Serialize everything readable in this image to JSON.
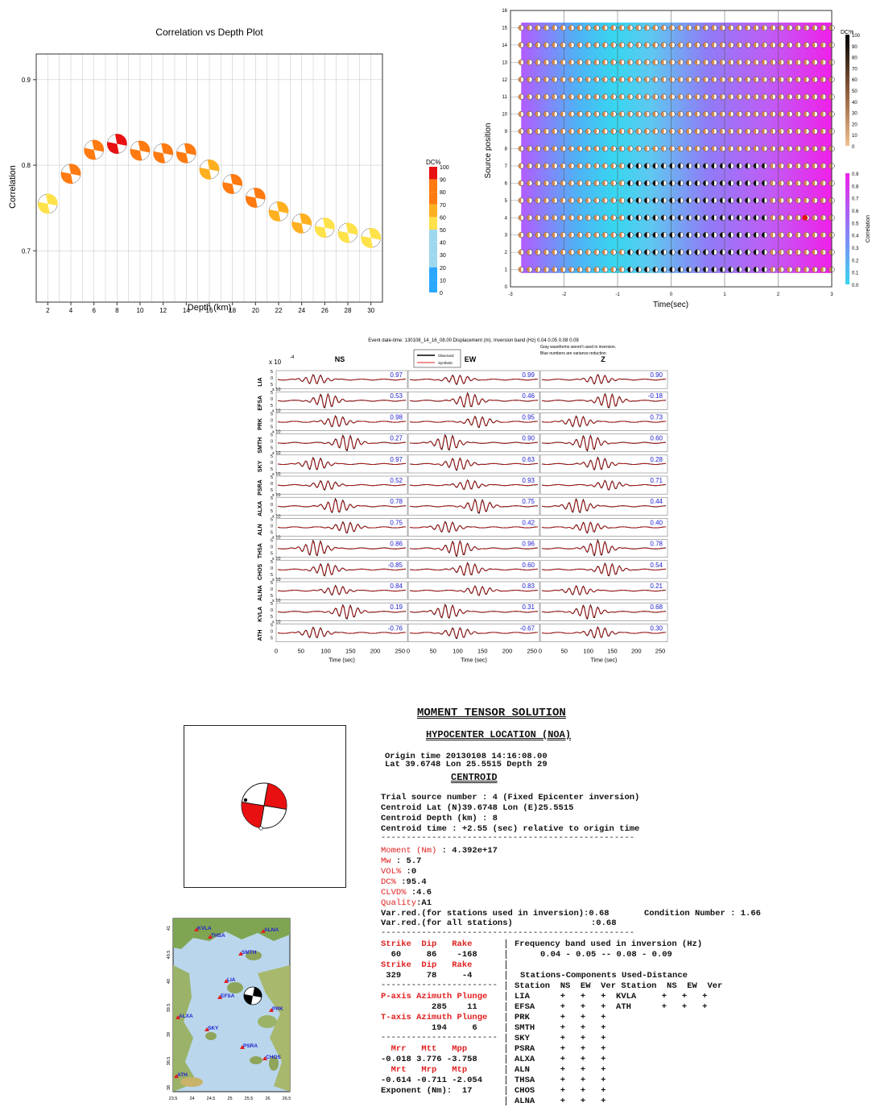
{
  "chart_data": [
    {
      "type": "scatter",
      "title": "Correlation vs Depth Plot",
      "xlabel": "Depth (km)",
      "ylabel": "Correlation",
      "xlim": [
        1,
        31
      ],
      "ylim": [
        0.64,
        0.93
      ],
      "xticks": [
        "2",
        "4",
        "6",
        "8",
        "10",
        "12",
        "14",
        "16",
        "18",
        "20",
        "22",
        "24",
        "26",
        "28",
        "30"
      ],
      "yticks": [
        "0.7",
        "0.8",
        "0.9"
      ],
      "grid": true,
      "colorbar": {
        "label": "DC%",
        "ticks": [
          "100",
          "90",
          "80",
          "70",
          "60",
          "50",
          "40",
          "30",
          "20",
          "10",
          "0"
        ]
      },
      "x": [
        2,
        4,
        6,
        8,
        10,
        12,
        14,
        16,
        18,
        20,
        22,
        24,
        26,
        28,
        30
      ],
      "y": [
        0.755,
        0.79,
        0.818,
        0.825,
        0.817,
        0.814,
        0.814,
        0.795,
        0.778,
        0.762,
        0.746,
        0.732,
        0.727,
        0.721,
        0.715
      ],
      "dc": [
        55,
        80,
        78,
        97,
        75,
        75,
        80,
        68,
        72,
        75,
        70,
        58,
        52,
        50,
        52
      ]
    },
    {
      "type": "heatmap",
      "xlabel": "Time(sec)",
      "ylabel": "Source position",
      "xlim": [
        -3,
        3
      ],
      "ylim": [
        0,
        16
      ],
      "xticks": [
        "-3",
        "-2",
        "-1",
        "0",
        "1",
        "2",
        "3"
      ],
      "yticks": [
        "0",
        "1",
        "2",
        "3",
        "4",
        "5",
        "6",
        "7",
        "8",
        "9",
        "10",
        "11",
        "12",
        "13",
        "14",
        "15",
        "16"
      ],
      "grid": true,
      "colorbar_dc": {
        "label": "DC%",
        "ticks": [
          "100",
          "90",
          "80",
          "70",
          "60",
          "50",
          "40",
          "30",
          "20",
          "10",
          "0"
        ]
      },
      "colorbar_corr": {
        "label": "Correlation",
        "ticks": [
          "0.9",
          "0.8",
          "0.7",
          "0.6",
          "0.5",
          "0.4",
          "0.3",
          "0.2",
          "0.1",
          "0.0"
        ]
      }
    },
    {
      "type": "line",
      "header": "Event date-time: 130108_14_16_08.00  Displacement (m).  Inversion band (Hz)  0.04 0.05 0.08 0.09",
      "note1": "Gray waveforms weren't used in inversion.",
      "note2": "Blue numbers are variance reduction",
      "legend": [
        "Observed",
        "Synthetic"
      ],
      "components": [
        "NS",
        "EW",
        "Z"
      ],
      "exponent": "x 10",
      "exponent_power": "-4",
      "row_scale": "x 10",
      "xlabel": "Time (sec)",
      "xticks": [
        "0",
        "50",
        "100",
        "150",
        "200",
        "250"
      ],
      "yticks": [
        "5",
        "0",
        "5"
      ],
      "stations": [
        "LIA",
        "EFSA",
        "PRK",
        "SMTH",
        "SKY",
        "PSRA",
        "ALXA",
        "ALN",
        "THSA",
        "CHOS",
        "ALNA",
        "KVLA",
        "ATH"
      ],
      "variance_reduction": [
        [
          "0.97",
          "0.99",
          "0.90"
        ],
        [
          "0.53",
          "0.46",
          "-0.18"
        ],
        [
          "0.98",
          "0.95",
          "0.73"
        ],
        [
          "0.27",
          "0.90",
          "0.60"
        ],
        [
          "0.97",
          "0.63",
          "0.28"
        ],
        [
          "0.52",
          "0.93",
          "0.71"
        ],
        [
          "0.78",
          "0.75",
          "0.44"
        ],
        [
          "0.75",
          "0.42",
          "0.40"
        ],
        [
          "0.86",
          "0.96",
          "0.78"
        ],
        [
          "-0.85",
          "0.60",
          "0.54"
        ],
        [
          "0.84",
          "0.83",
          "0.21"
        ],
        [
          "0.19",
          "0.31",
          "0.68"
        ],
        [
          "-0.76",
          "-0.67",
          "0.30"
        ]
      ]
    }
  ],
  "map": {
    "labels": [
      "KVLA",
      "THSA",
      "ALNA",
      "SMTH",
      "LIA",
      "EFSA",
      "PRK",
      "ALXA",
      "SKY",
      "PSRA",
      "CHOS",
      "ATH"
    ],
    "lon_ticks": [
      "23.5",
      "24",
      "24.5",
      "25",
      "25.5",
      "26",
      "26.5"
    ],
    "lat_ticks": [
      "41",
      "40.5",
      "40",
      "39.5",
      "39",
      "38.5",
      "38"
    ]
  },
  "report": {
    "title": "MOMENT TENSOR SOLUTION",
    "hypo_title": "HYPOCENTER LOCATION (NOA)",
    "origin_time": "Origin time 20130108 14:16:08.00",
    "origin_loc": "Lat 39.6748 Lon 25.5515 Depth 29",
    "centroid_title": "CENTROID",
    "trial": "Trial source number : 4 (Fixed Epicenter inversion)",
    "centroid_latlon": "Centroid Lat (N)39.6748 Lon (E)25.5515",
    "centroid_depth": "Centroid Depth (km) : 8",
    "centroid_time": "Centroid time : +2.55 (sec) relative to origin time",
    "dashes": "--------------------------------------------------",
    "moment_label": "Moment (Nm)",
    "moment_value": ": 4.392e+17",
    "mw_label": "Mw",
    "mw_value": ": 5.7",
    "vol_label": "VOL%",
    "vol_value": ":0",
    "dc_label": "DC%",
    "dc_value": ":95.4",
    "clvd_label": "CLVD%",
    "clvd_value": ":4.6",
    "quality_label": "Quality",
    "quality_value": ":A1",
    "varred_used": "Var.red.(for stations used in inversion):0.68",
    "condition": "Condition Number : 1.66",
    "varred_all": "Var.red.(for all stations)",
    "varred_all_value": ":0.68",
    "sdr_header": "Strike  Dip   Rake",
    "sdr1": "  60     86    -168",
    "sdr2": " 329     78     -4",
    "short_dash": "-----------------------",
    "paxis_header": "P-axis Azimuth Plunge",
    "paxis": "          285    11",
    "taxis_header": "T-axis Azimuth Plunge",
    "taxis": "          194     6",
    "mt_header1": "  Mrr   Mtt   Mpp",
    "mt_vals1": "-0.018 3.776 -3.758",
    "mt_header2": "  Mrt   Mrp   Mtp",
    "mt_vals2": "-0.614 -0.711 -2.054",
    "exponent": "Exponent (Nm):  17",
    "freq_band_title": "Frequency band used in inversion (Hz)",
    "freq_band": "0.04 - 0.05 -- 0.08 - 0.09",
    "stations_title": "Stations-Components Used-Distance",
    "stations_header": "Station  NS  EW  Ver Station  NS  EW  Ver",
    "station_rows": [
      "LIA      +   +   +  KVLA     +   +   +",
      "EFSA     +   +   +  ATH      +   +   +",
      "PRK      +   +   +",
      "SMTH     +   +   +",
      "SKY      +   +   +",
      "PSRA     +   +   +",
      "ALXA     +   +   +",
      "ALN      +   +   +",
      "THSA     +   +   +",
      "CHOS     +   +   +",
      "ALNA     +   +   +"
    ]
  },
  "colors": {
    "observed": "#000000",
    "synthetic": "#e02020",
    "vr_text": "#2020d0",
    "beachball": "#e81010"
  }
}
